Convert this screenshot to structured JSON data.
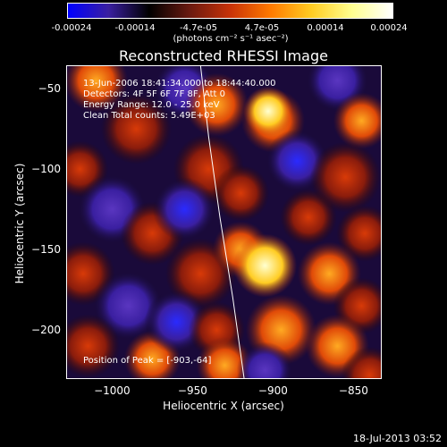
{
  "colorbar": {
    "ticks": [
      "-0.00024",
      "-0.00014",
      "-4.7e-05",
      "4.7e-05",
      "0.00014",
      "0.00024"
    ],
    "units": "(photons cm⁻² s⁻¹ asec⁻²)",
    "colormap": [
      "#0000ff",
      "#3a1fa0",
      "#000000",
      "#6a1a10",
      "#c83208",
      "#ff7a00",
      "#ffcc22",
      "#ffff90",
      "#ffffff"
    ]
  },
  "info": {
    "line1": "13-Jun-2006 18:41:34.000 to 18:44:40.000",
    "line2": "Detectors: 4F 5F 6F 7F 8F, Att 0",
    "line3": "Energy Range: 12.0 - 25.0 keV",
    "line4": "Clean    Total counts: 5.49E+03",
    "peak": "Position of Peak = [-903,-64]"
  },
  "timestamp": "18-Jul-2013 03:52",
  "chart_data": {
    "type": "heatmap",
    "title": "Reconstructed RHESSI Image",
    "xlabel": "Heliocentric X (arcsec)",
    "ylabel": "Heliocentric Y (arcsec)",
    "xlim": [
      -1028,
      -833
    ],
    "ylim": [
      -230,
      -36
    ],
    "xticks": [
      -1000,
      -950,
      -900,
      -850
    ],
    "yticks": [
      -50,
      -100,
      -150,
      -200
    ],
    "xtick_labels": [
      "−1000",
      "−950",
      "−900",
      "−850"
    ],
    "ytick_labels": [
      "−50",
      "−100",
      "−150",
      "−200"
    ],
    "grid": false,
    "peak_position": [
      -903,
      -64
    ],
    "limb_curve": [
      [
        -945,
        -36
      ],
      [
        -940,
        -80
      ],
      [
        -933,
        -130
      ],
      [
        -925,
        -180
      ],
      [
        -918,
        -230
      ]
    ],
    "blobs": [
      {
        "x": -1010,
        "y": -45,
        "v": 0.6,
        "r": 9
      },
      {
        "x": -985,
        "y": -75,
        "v": 0.55,
        "r": 10
      },
      {
        "x": -1020,
        "y": -100,
        "v": 0.4,
        "r": 8
      },
      {
        "x": -1000,
        "y": -125,
        "v": -0.55,
        "r": 10
      },
      {
        "x": -975,
        "y": -140,
        "v": 0.5,
        "r": 9
      },
      {
        "x": -1018,
        "y": -165,
        "v": 0.45,
        "r": 9
      },
      {
        "x": -990,
        "y": -185,
        "v": -0.5,
        "r": 10
      },
      {
        "x": -1015,
        "y": -210,
        "v": 0.5,
        "r": 9
      },
      {
        "x": -975,
        "y": -218,
        "v": 0.65,
        "r": 8
      },
      {
        "x": -955,
        "y": -50,
        "v": -0.45,
        "r": 9
      },
      {
        "x": -935,
        "y": -60,
        "v": 0.7,
        "r": 9
      },
      {
        "x": -940,
        "y": -100,
        "v": 0.45,
        "r": 10
      },
      {
        "x": -955,
        "y": -125,
        "v": -0.75,
        "r": 9
      },
      {
        "x": -920,
        "y": -115,
        "v": 0.35,
        "r": 8
      },
      {
        "x": -945,
        "y": -165,
        "v": 0.5,
        "r": 10
      },
      {
        "x": -920,
        "y": -150,
        "v": 0.6,
        "r": 8
      },
      {
        "x": -905,
        "y": -160,
        "v": 0.9,
        "r": 9
      },
      {
        "x": -960,
        "y": -195,
        "v": -0.6,
        "r": 9
      },
      {
        "x": -935,
        "y": -200,
        "v": 0.55,
        "r": 8
      },
      {
        "x": -930,
        "y": -222,
        "v": 0.75,
        "r": 8
      },
      {
        "x": -900,
        "y": -70,
        "v": 0.65,
        "r": 9
      },
      {
        "x": -903,
        "y": -64,
        "v": 1.0,
        "r": 7
      },
      {
        "x": -885,
        "y": -95,
        "v": -0.6,
        "r": 9
      },
      {
        "x": -878,
        "y": -130,
        "v": 0.35,
        "r": 8
      },
      {
        "x": -895,
        "y": -200,
        "v": 0.6,
        "r": 10
      },
      {
        "x": -905,
        "y": -225,
        "v": -0.35,
        "r": 8
      },
      {
        "x": -860,
        "y": -45,
        "v": -0.5,
        "r": 9
      },
      {
        "x": -845,
        "y": -70,
        "v": 0.6,
        "r": 8
      },
      {
        "x": -855,
        "y": -105,
        "v": 0.5,
        "r": 10
      },
      {
        "x": -843,
        "y": -140,
        "v": 0.4,
        "r": 8
      },
      {
        "x": -865,
        "y": -165,
        "v": 0.75,
        "r": 9
      },
      {
        "x": -845,
        "y": -185,
        "v": 0.45,
        "r": 8
      },
      {
        "x": -860,
        "y": -210,
        "v": 0.8,
        "r": 9
      },
      {
        "x": -840,
        "y": -228,
        "v": 0.55,
        "r": 8
      }
    ]
  }
}
